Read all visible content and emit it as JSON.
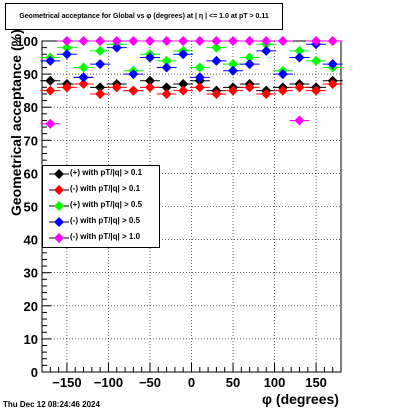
{
  "title": "Geometrical acceptance for Global vs φ (degrees) at | η | <= 1.0 at pT > 0.11",
  "footer": "Thu Dec 12 08:24:46 2024",
  "chart_data": {
    "type": "scatter",
    "title": "Geometrical acceptance for Global vs φ (degrees) at | η | <= 1.0 at pT > 0.11",
    "xlabel": "φ (degrees)",
    "ylabel": "Geometrical acceptance (%)",
    "xlim": [
      -180,
      180
    ],
    "ylim": [
      0,
      100
    ],
    "xticks": [
      -150,
      -100,
      -50,
      0,
      50,
      100,
      150
    ],
    "yticks": [
      0,
      10,
      20,
      30,
      40,
      50,
      60,
      70,
      80,
      90,
      100
    ],
    "grid": true,
    "legend_position": "middle-left",
    "series": [
      {
        "name": "(+) with pT/|q| > 0.1",
        "color": "#000000",
        "x": [
          -170,
          -150,
          -130,
          -110,
          -90,
          -70,
          -50,
          -30,
          -10,
          10,
          30,
          50,
          70,
          90,
          110,
          130,
          150,
          170
        ],
        "y": [
          88,
          87,
          89,
          86,
          87,
          85,
          88,
          86,
          87,
          88,
          85,
          86,
          87,
          85,
          86,
          87,
          86,
          88
        ]
      },
      {
        "name": "(-) with pT/|q| > 0.1",
        "color": "#ff0000",
        "x": [
          -170,
          -150,
          -130,
          -110,
          -90,
          -70,
          -50,
          -30,
          -10,
          10,
          30,
          50,
          70,
          90,
          110,
          130,
          150,
          170
        ],
        "y": [
          85,
          86,
          87,
          84,
          86,
          85,
          86,
          84,
          85,
          86,
          84,
          85,
          86,
          84,
          85,
          86,
          85,
          87
        ]
      },
      {
        "name": "(+) with pT/|q| > 0.5",
        "color": "#00ff00",
        "x": [
          -170,
          -150,
          -130,
          -110,
          -90,
          -70,
          -50,
          -30,
          -10,
          10,
          30,
          50,
          70,
          90,
          110,
          130,
          150,
          170
        ],
        "y": [
          95,
          98,
          92,
          97,
          99,
          91,
          96,
          94,
          97,
          92,
          98,
          93,
          95,
          99,
          91,
          97,
          94,
          92
        ]
      },
      {
        "name": "(-) with pT/|q| > 0.5",
        "color": "#0000ff",
        "x": [
          -170,
          -150,
          -130,
          -110,
          -90,
          -70,
          -50,
          -30,
          -10,
          10,
          30,
          50,
          70,
          90,
          110,
          130,
          150,
          170
        ],
        "y": [
          94,
          96,
          89,
          93,
          98,
          90,
          95,
          92,
          96,
          89,
          94,
          91,
          93,
          97,
          90,
          95,
          99,
          93
        ]
      },
      {
        "name": "(-) with pT/|q| > 1.0",
        "color": "#ff00ff",
        "x": [
          -170,
          -150,
          -130,
          -110,
          -90,
          -70,
          -50,
          -30,
          -10,
          10,
          30,
          50,
          70,
          90,
          110,
          130,
          150,
          170
        ],
        "y": [
          75,
          100,
          100,
          100,
          100,
          100,
          100,
          100,
          100,
          100,
          100,
          100,
          100,
          100,
          100,
          76,
          100,
          100
        ]
      }
    ]
  }
}
